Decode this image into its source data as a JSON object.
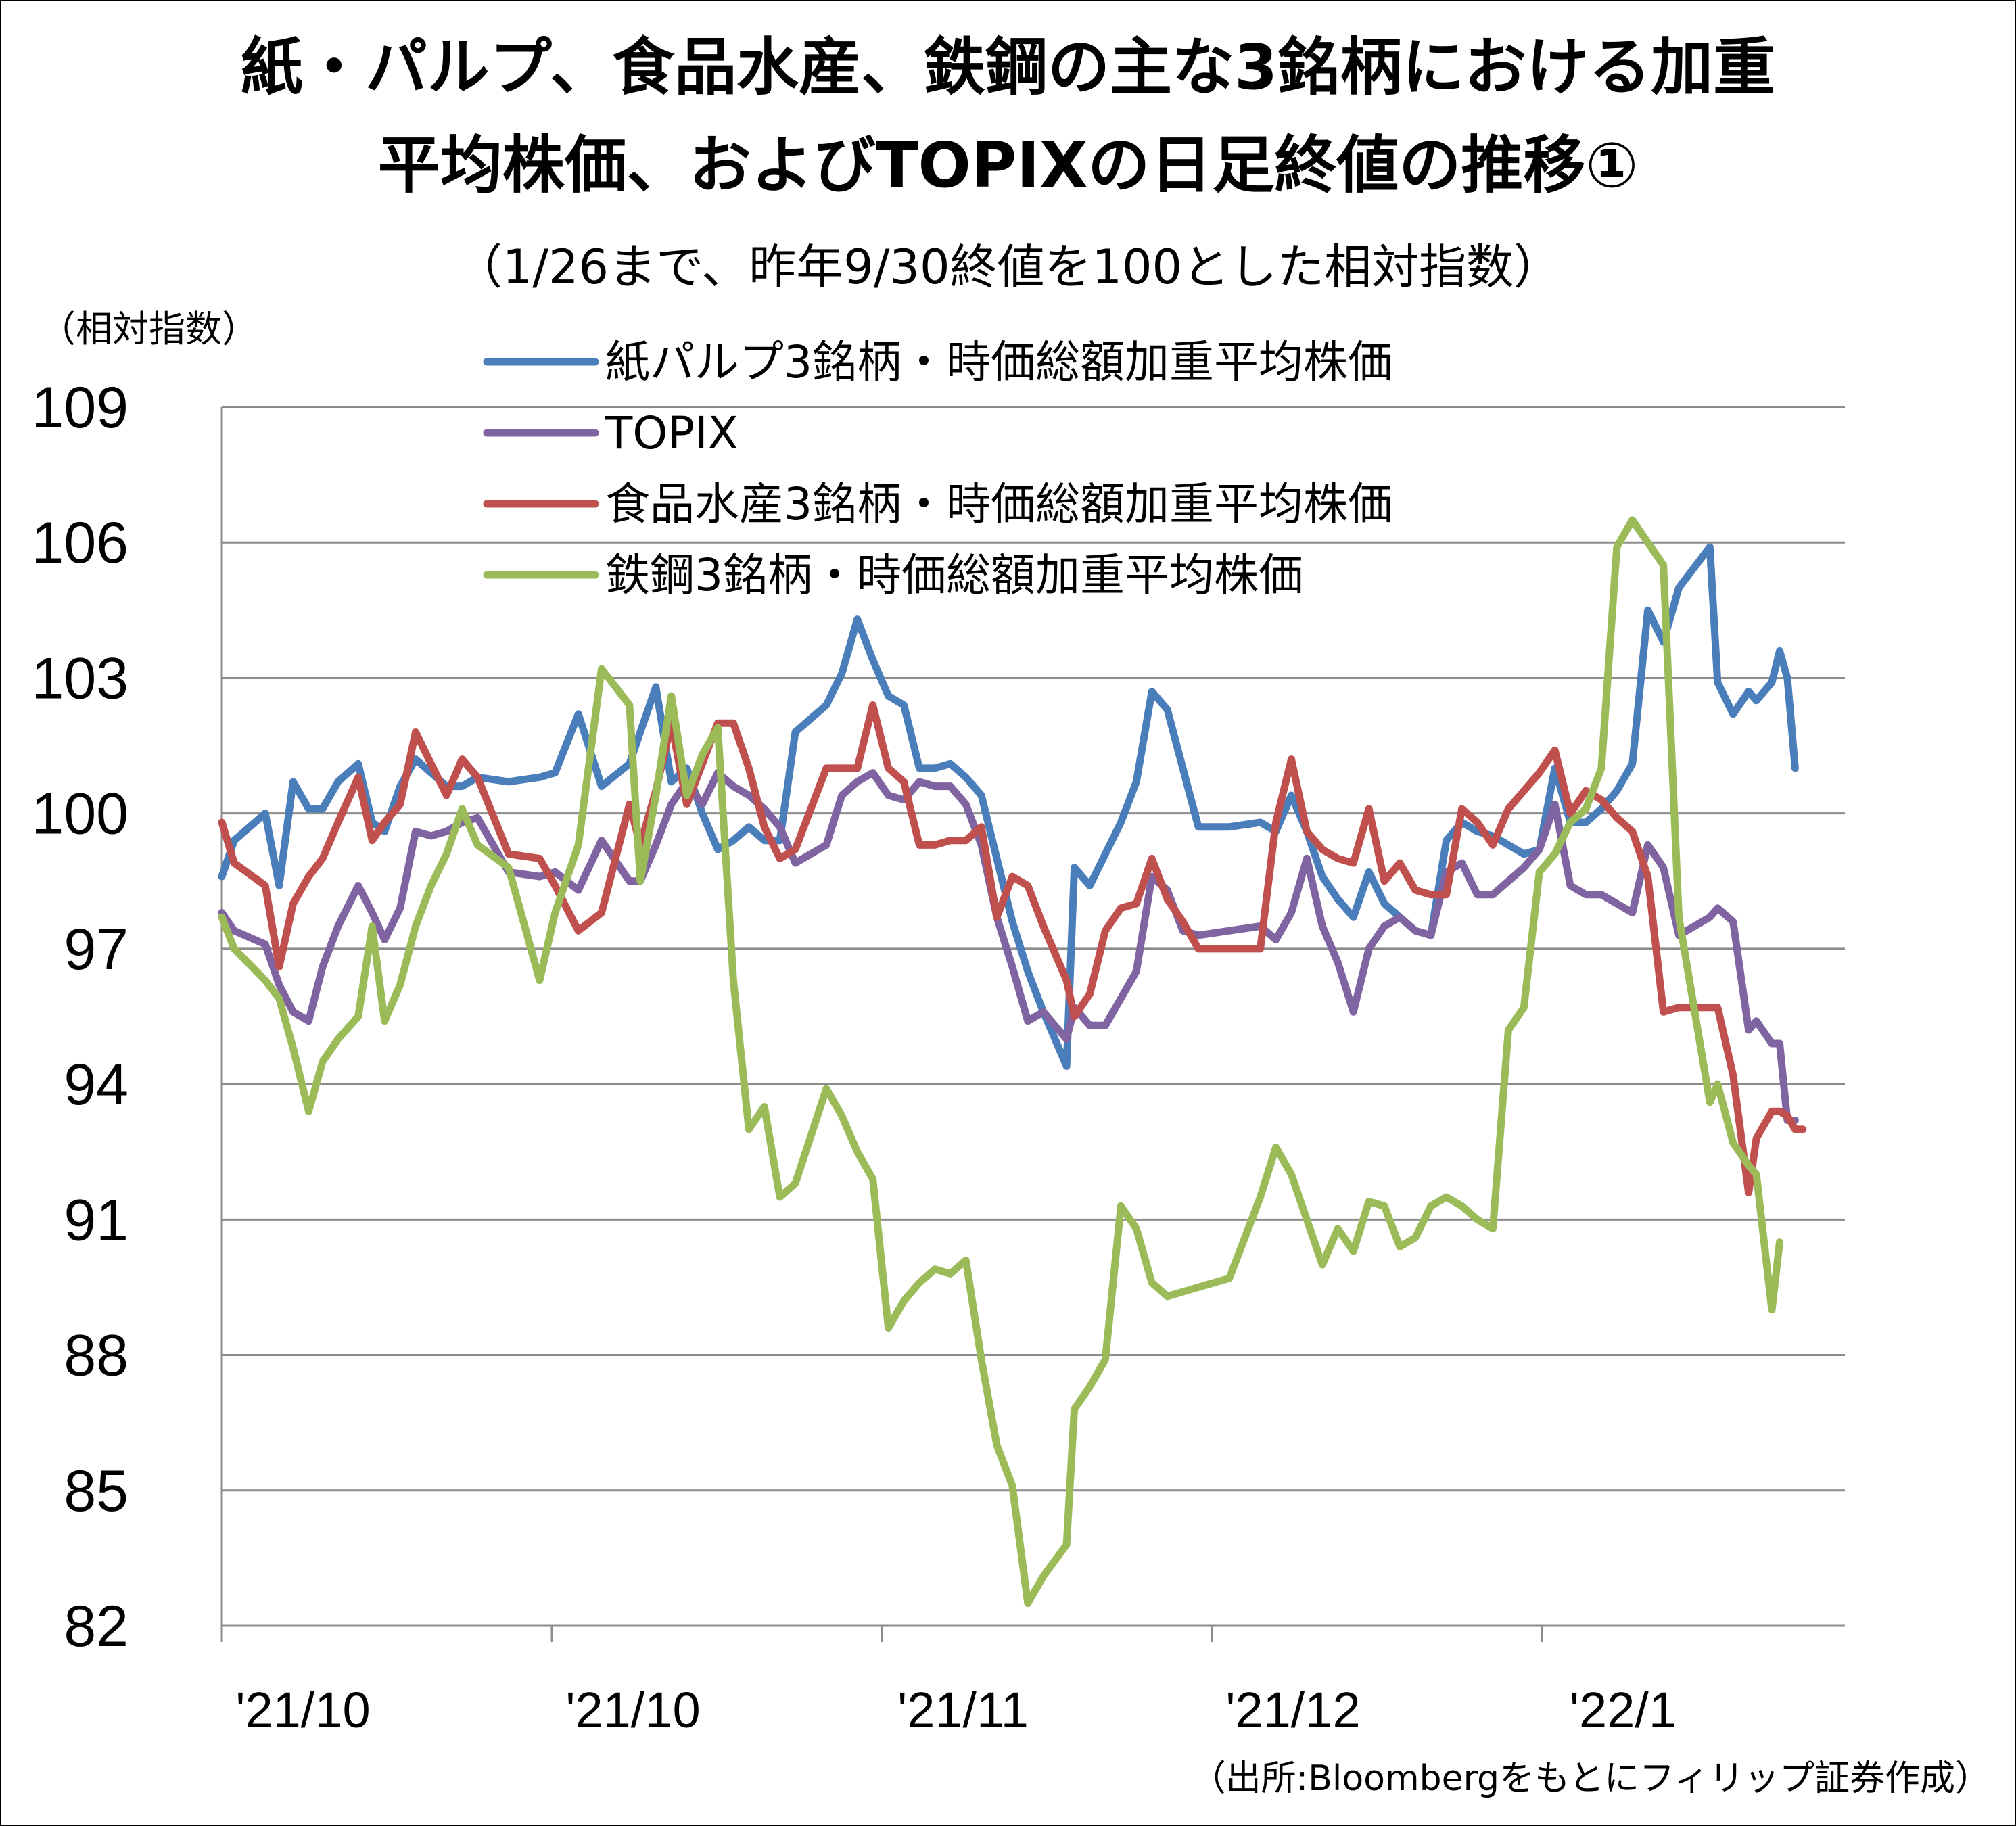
{
  "title_line1": "紙・パルプ、食品水産、鉄鋼の主な3銘柄における加重",
  "title_line2": "平均株価、およびTOPIXの日足終値の推移①",
  "subtitle": "（1/26まで、昨年9/30終値を100とした相対指数）",
  "source": "（出所:Bloombergをもとにフィリップ証券作成）",
  "chart_data": {
    "type": "line",
    "title": "紙・パルプ、食品水産、鉄鋼の主な3銘柄における加重平均株価、およびTOPIXの日足終値の推移①",
    "subtitle": "（1/26まで、昨年9/30終値を100とした相対指数）",
    "ylabel": "（相対指数）",
    "xlabel": "",
    "ylim": [
      82,
      109
    ],
    "yticks": [
      82,
      85,
      88,
      91,
      94,
      97,
      100,
      103,
      106,
      109
    ],
    "xtick_labels": [
      "'21/10",
      "'21/10",
      "'21/11",
      "'21/12",
      "'22/1"
    ],
    "grid": true,
    "legend_position": "top",
    "x_count": 80,
    "series": [
      {
        "name": "紙パルプ3銘柄・時価総額加重平均株価",
        "color": "#4a7ebb",
        "values": [
          98.6,
          99.4,
          100.0,
          98.4,
          100.7,
          100.1,
          100.1,
          100.7,
          101.1,
          99.8,
          99.6,
          100.6,
          101.2,
          100.9,
          100.6,
          100.6,
          100.8,
          100.7,
          100.8,
          100.9,
          102.2,
          100.6,
          101.1,
          101.8,
          102.8,
          100.7,
          101.0,
          100.0,
          99.2,
          99.4,
          99.7,
          99.4,
          99.4,
          101.8,
          102.4,
          103.1,
          104.3,
          103.4,
          102.6,
          102.4,
          101.0,
          101.0,
          101.1,
          100.8,
          100.4,
          99.0,
          97.6,
          96.5,
          95.6,
          94.4,
          98.8,
          98.4,
          99.1,
          99.8,
          100.7,
          102.7,
          102.3,
          101.0,
          99.7,
          99.7,
          99.8,
          99.6,
          100.4,
          99.6,
          98.6,
          98.1,
          97.7,
          98.7,
          98.0,
          97.7,
          97.4,
          97.3,
          99.4,
          99.8,
          99.6,
          99.5,
          99.3,
          99.1,
          99.2,
          101.0,
          99.8,
          99.8,
          100.1,
          100.5,
          101.1,
          104.5,
          103.8,
          105.0,
          105.9,
          102.9,
          102.2,
          102.7,
          102.5,
          102.9,
          103.6,
          103.0,
          101.0
        ],
        "x_frac": [
          0,
          0.008,
          0.028,
          0.037,
          0.046,
          0.056,
          0.065,
          0.075,
          0.088,
          0.097,
          0.105,
          0.115,
          0.125,
          0.135,
          0.145,
          0.155,
          0.165,
          0.185,
          0.205,
          0.215,
          0.23,
          0.245,
          0.263,
          0.27,
          0.28,
          0.29,
          0.3,
          0.31,
          0.32,
          0.33,
          0.34,
          0.35,
          0.36,
          0.37,
          0.39,
          0.4,
          0.41,
          0.42,
          0.43,
          0.44,
          0.45,
          0.46,
          0.47,
          0.48,
          0.49,
          0.5,
          0.51,
          0.52,
          0.53,
          0.545,
          0.55,
          0.56,
          0.57,
          0.58,
          0.59,
          0.6,
          0.61,
          0.62,
          0.63,
          0.65,
          0.67,
          0.68,
          0.69,
          0.7,
          0.71,
          0.72,
          0.73,
          0.74,
          0.75,
          0.76,
          0.77,
          0.78,
          0.79,
          0.8,
          0.81,
          0.82,
          0.83,
          0.84,
          0.85,
          0.86,
          0.87,
          0.88,
          0.89,
          0.9,
          0.91,
          0.92,
          0.93,
          0.94,
          0.96,
          0.965,
          0.975,
          0.985,
          0.99,
          1.0,
          1.005,
          1.01,
          1.015
        ]
      },
      {
        "name": "TOPIX",
        "color": "#8064a2",
        "values": [
          97.8,
          97.4,
          97.1,
          96.2,
          95.6,
          95.4,
          96.6,
          97.5,
          98.4,
          97.8,
          97.2,
          97.9,
          99.6,
          99.5,
          99.6,
          99.8,
          99.9,
          98.7,
          98.6,
          98.7,
          98.3,
          99.4,
          98.5,
          98.5,
          99.3,
          100.2,
          100.7,
          100.2,
          100.9,
          100.6,
          100.4,
          100.1,
          99.7,
          98.9,
          99.3,
          100.4,
          100.7,
          100.9,
          100.4,
          100.3,
          100.7,
          100.6,
          100.6,
          100.2,
          99.3,
          97.7,
          96.6,
          95.4,
          95.6,
          95.0,
          95.7,
          95.3,
          95.3,
          95.9,
          96.5,
          98.6,
          98.3,
          97.4,
          97.3,
          97.4,
          97.5,
          97.2,
          97.8,
          99.0,
          97.5,
          96.7,
          95.6,
          97.0,
          97.5,
          97.7,
          97.4,
          97.3,
          98.7,
          98.9,
          98.2,
          98.2,
          98.5,
          98.8,
          99.2,
          100.2,
          98.4,
          98.2,
          98.2,
          98.0,
          97.8,
          99.3,
          98.8,
          97.3,
          97.7,
          97.9,
          97.6,
          95.2,
          95.4,
          94.9,
          94.9,
          93.2,
          93.2
        ],
        "x_frac": [
          0,
          0.008,
          0.028,
          0.037,
          0.046,
          0.056,
          0.065,
          0.075,
          0.088,
          0.097,
          0.105,
          0.115,
          0.125,
          0.135,
          0.145,
          0.155,
          0.165,
          0.185,
          0.205,
          0.215,
          0.23,
          0.245,
          0.263,
          0.27,
          0.28,
          0.29,
          0.3,
          0.31,
          0.32,
          0.33,
          0.34,
          0.35,
          0.36,
          0.37,
          0.39,
          0.4,
          0.41,
          0.42,
          0.43,
          0.44,
          0.45,
          0.46,
          0.47,
          0.48,
          0.49,
          0.5,
          0.51,
          0.52,
          0.53,
          0.545,
          0.55,
          0.56,
          0.57,
          0.58,
          0.59,
          0.6,
          0.61,
          0.62,
          0.63,
          0.65,
          0.67,
          0.68,
          0.69,
          0.7,
          0.71,
          0.72,
          0.73,
          0.74,
          0.75,
          0.76,
          0.77,
          0.78,
          0.79,
          0.8,
          0.81,
          0.82,
          0.83,
          0.84,
          0.85,
          0.86,
          0.87,
          0.88,
          0.89,
          0.9,
          0.91,
          0.92,
          0.93,
          0.94,
          0.96,
          0.965,
          0.975,
          0.985,
          0.99,
          1.0,
          1.005,
          1.01,
          1.015
        ]
      },
      {
        "name": "食品水産3銘柄・時価総額加重平均株価",
        "color": "#c0504d",
        "values": [
          99.8,
          98.9,
          98.4,
          96.6,
          98.0,
          98.6,
          99.0,
          99.8,
          100.8,
          99.4,
          99.8,
          100.2,
          101.8,
          101.1,
          100.4,
          101.2,
          100.8,
          99.1,
          99.0,
          98.4,
          97.4,
          97.8,
          100.2,
          99.3,
          100.5,
          102.0,
          100.2,
          101.1,
          102.0,
          102.0,
          101.0,
          99.7,
          99.0,
          99.2,
          101.0,
          101.0,
          101.0,
          102.4,
          101.0,
          100.7,
          99.3,
          99.3,
          99.4,
          99.4,
          99.7,
          97.7,
          98.6,
          98.4,
          97.5,
          96.3,
          95.5,
          96.0,
          97.4,
          97.9,
          98.0,
          99.0,
          98.1,
          97.6,
          97.0,
          97.0,
          97.0,
          99.8,
          101.2,
          99.6,
          99.2,
          99.0,
          98.9,
          100.1,
          98.5,
          98.9,
          98.3,
          98.2,
          98.2,
          100.1,
          99.8,
          99.3,
          100.1,
          100.5,
          100.9,
          101.4,
          100.0,
          100.5,
          100.3,
          99.9,
          99.6,
          98.6,
          95.6,
          95.7,
          95.7,
          95.7,
          94.2,
          91.6,
          92.8,
          93.4,
          93.4,
          93.3,
          93.0,
          93.0
        ],
        "x_frac": [
          0,
          0.008,
          0.028,
          0.037,
          0.046,
          0.056,
          0.065,
          0.075,
          0.088,
          0.097,
          0.105,
          0.115,
          0.125,
          0.135,
          0.145,
          0.155,
          0.165,
          0.185,
          0.205,
          0.215,
          0.23,
          0.245,
          0.263,
          0.27,
          0.28,
          0.29,
          0.3,
          0.31,
          0.32,
          0.33,
          0.34,
          0.35,
          0.36,
          0.37,
          0.39,
          0.4,
          0.41,
          0.42,
          0.43,
          0.44,
          0.45,
          0.46,
          0.47,
          0.48,
          0.49,
          0.5,
          0.51,
          0.52,
          0.53,
          0.545,
          0.55,
          0.56,
          0.57,
          0.58,
          0.59,
          0.6,
          0.61,
          0.62,
          0.63,
          0.65,
          0.67,
          0.68,
          0.69,
          0.7,
          0.71,
          0.72,
          0.73,
          0.74,
          0.75,
          0.76,
          0.77,
          0.78,
          0.79,
          0.8,
          0.81,
          0.82,
          0.83,
          0.84,
          0.85,
          0.86,
          0.87,
          0.88,
          0.89,
          0.9,
          0.91,
          0.92,
          0.93,
          0.94,
          0.96,
          0.965,
          0.975,
          0.985,
          0.99,
          1.0,
          1.005,
          1.01,
          1.015,
          1.02
        ]
      },
      {
        "name": "鉄鋼3銘柄・時価総額加重平均株価",
        "color": "#9bbb59",
        "values": [
          97.7,
          97.0,
          96.3,
          95.9,
          94.8,
          93.4,
          94.5,
          95.0,
          95.5,
          97.5,
          95.4,
          96.2,
          97.5,
          98.4,
          99.1,
          100.1,
          99.3,
          98.8,
          96.3,
          97.8,
          99.3,
          103.2,
          102.4,
          98.5,
          100.4,
          102.6,
          100.4,
          101.3,
          101.9,
          96.3,
          93.0,
          93.5,
          91.5,
          91.8,
          93.9,
          93.3,
          92.5,
          91.9,
          88.6,
          89.2,
          89.6,
          89.9,
          89.8,
          90.1,
          87.9,
          86.0,
          85.1,
          82.5,
          83.1,
          83.8,
          86.8,
          87.3,
          87.9,
          91.3,
          90.8,
          89.6,
          89.3,
          89.4,
          89.5,
          89.7,
          91.5,
          92.6,
          92.0,
          91.0,
          90.0,
          90.8,
          90.3,
          91.4,
          91.3,
          90.4,
          90.6,
          91.3,
          91.5,
          91.3,
          91.0,
          90.8,
          95.2,
          95.7,
          98.7,
          99.1,
          99.8,
          100.1,
          101.0,
          105.9,
          106.5,
          106.0,
          105.5,
          97.7,
          93.6,
          94.0,
          92.7,
          92.2,
          92.0,
          89.0,
          90.5
        ],
        "x_frac": [
          0,
          0.008,
          0.028,
          0.037,
          0.046,
          0.056,
          0.065,
          0.075,
          0.088,
          0.097,
          0.105,
          0.115,
          0.125,
          0.135,
          0.145,
          0.155,
          0.165,
          0.185,
          0.205,
          0.215,
          0.23,
          0.245,
          0.263,
          0.27,
          0.28,
          0.29,
          0.3,
          0.31,
          0.32,
          0.33,
          0.34,
          0.35,
          0.36,
          0.37,
          0.39,
          0.4,
          0.41,
          0.42,
          0.43,
          0.44,
          0.45,
          0.46,
          0.47,
          0.48,
          0.49,
          0.5,
          0.51,
          0.52,
          0.53,
          0.545,
          0.55,
          0.56,
          0.57,
          0.58,
          0.59,
          0.6,
          0.61,
          0.62,
          0.63,
          0.65,
          0.67,
          0.68,
          0.69,
          0.7,
          0.71,
          0.72,
          0.73,
          0.74,
          0.75,
          0.76,
          0.77,
          0.78,
          0.79,
          0.8,
          0.81,
          0.82,
          0.83,
          0.84,
          0.85,
          0.86,
          0.87,
          0.88,
          0.89,
          0.9,
          0.91,
          0.92,
          0.93,
          0.94,
          0.96,
          0.965,
          0.975,
          0.985,
          0.99,
          1.0,
          1.005
        ]
      }
    ]
  }
}
